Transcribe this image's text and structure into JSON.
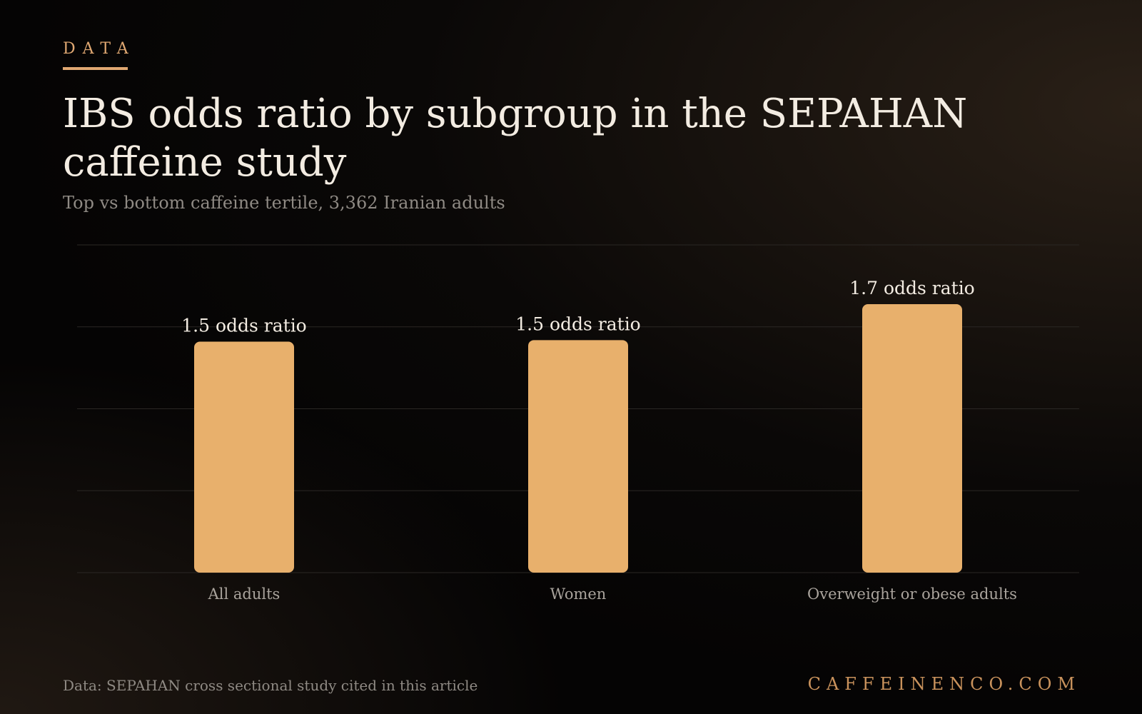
{
  "kicker": "DATA",
  "source": "Data: SEPAHAN cross sectional study cited in this article",
  "brand": "CAFFEINENCO.COM",
  "chart_data": {
    "type": "bar",
    "title": "IBS odds ratio by subgroup in the SEPAHAN caffeine study",
    "subtitle": "Top vs bottom caffeine tertile, 3,362 Iranian adults",
    "categories": [
      "All adults",
      "Women",
      "Overweight or obese adults"
    ],
    "values": [
      1.48,
      1.49,
      1.72
    ],
    "value_labels": [
      "1.5 odds ratio",
      "1.5 odds ratio",
      "1.7 odds ratio"
    ],
    "color": "#e8b06c",
    "ylim": [
      0,
      2.1
    ],
    "yticks": [
      0,
      0.525,
      1.05,
      1.575,
      2.1
    ],
    "grid": true
  }
}
